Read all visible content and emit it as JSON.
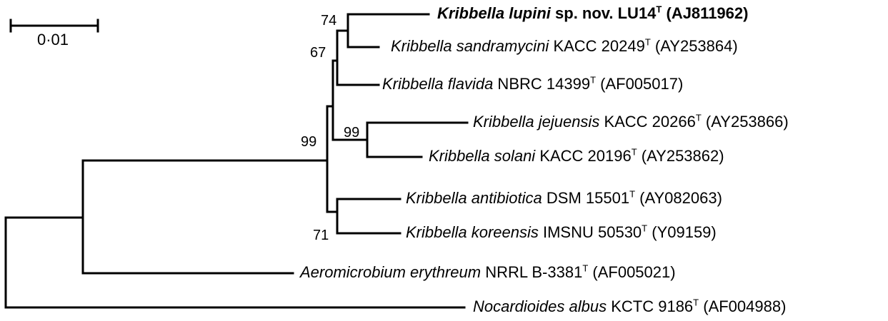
{
  "scale_bar": {
    "label": "0·01"
  },
  "taxa": [
    {
      "genus_species": "Kribbella lupini",
      "rest": " sp. nov. LU14",
      "sup": "T",
      "accession": " (AJ811962)",
      "bold": true
    },
    {
      "genus_species": "Kribbella sandramycini",
      "rest": " KACC 20249",
      "sup": "T",
      "accession": "  (AY253864)",
      "bold": false
    },
    {
      "genus_species": "Kribbella flavida",
      "rest": " NBRC 14399",
      "sup": "T",
      "accession": " (AF005017)",
      "bold": false
    },
    {
      "genus_species": "Kribbella jejuensis",
      "rest": " KACC 20266",
      "sup": "T",
      "accession": " (AY253866)",
      "bold": false
    },
    {
      "genus_species": "Kribbella solani",
      "rest": " KACC 20196",
      "sup": "T",
      "accession": " (AY253862)",
      "bold": false
    },
    {
      "genus_species": "Kribbella antibiotica",
      "rest": " DSM 15501",
      "sup": "T",
      "accession": " (AY082063)",
      "bold": false
    },
    {
      "genus_species": "Kribbella koreensis",
      "rest": " IMSNU 50530",
      "sup": "T",
      "accession": " (Y09159)",
      "bold": false
    },
    {
      "genus_species": "Aeromicrobium erythreum",
      "rest": " NRRL B-3381",
      "sup": "T",
      "accession": " (AF005021)",
      "bold": false
    },
    {
      "genus_species": "Nocardioides albus",
      "rest": " KCTC 9186",
      "sup": "T",
      "accession": " (AF004988)",
      "bold": false
    }
  ],
  "bootstrap_values": [
    "74",
    "67",
    "99",
    "99",
    "71"
  ]
}
